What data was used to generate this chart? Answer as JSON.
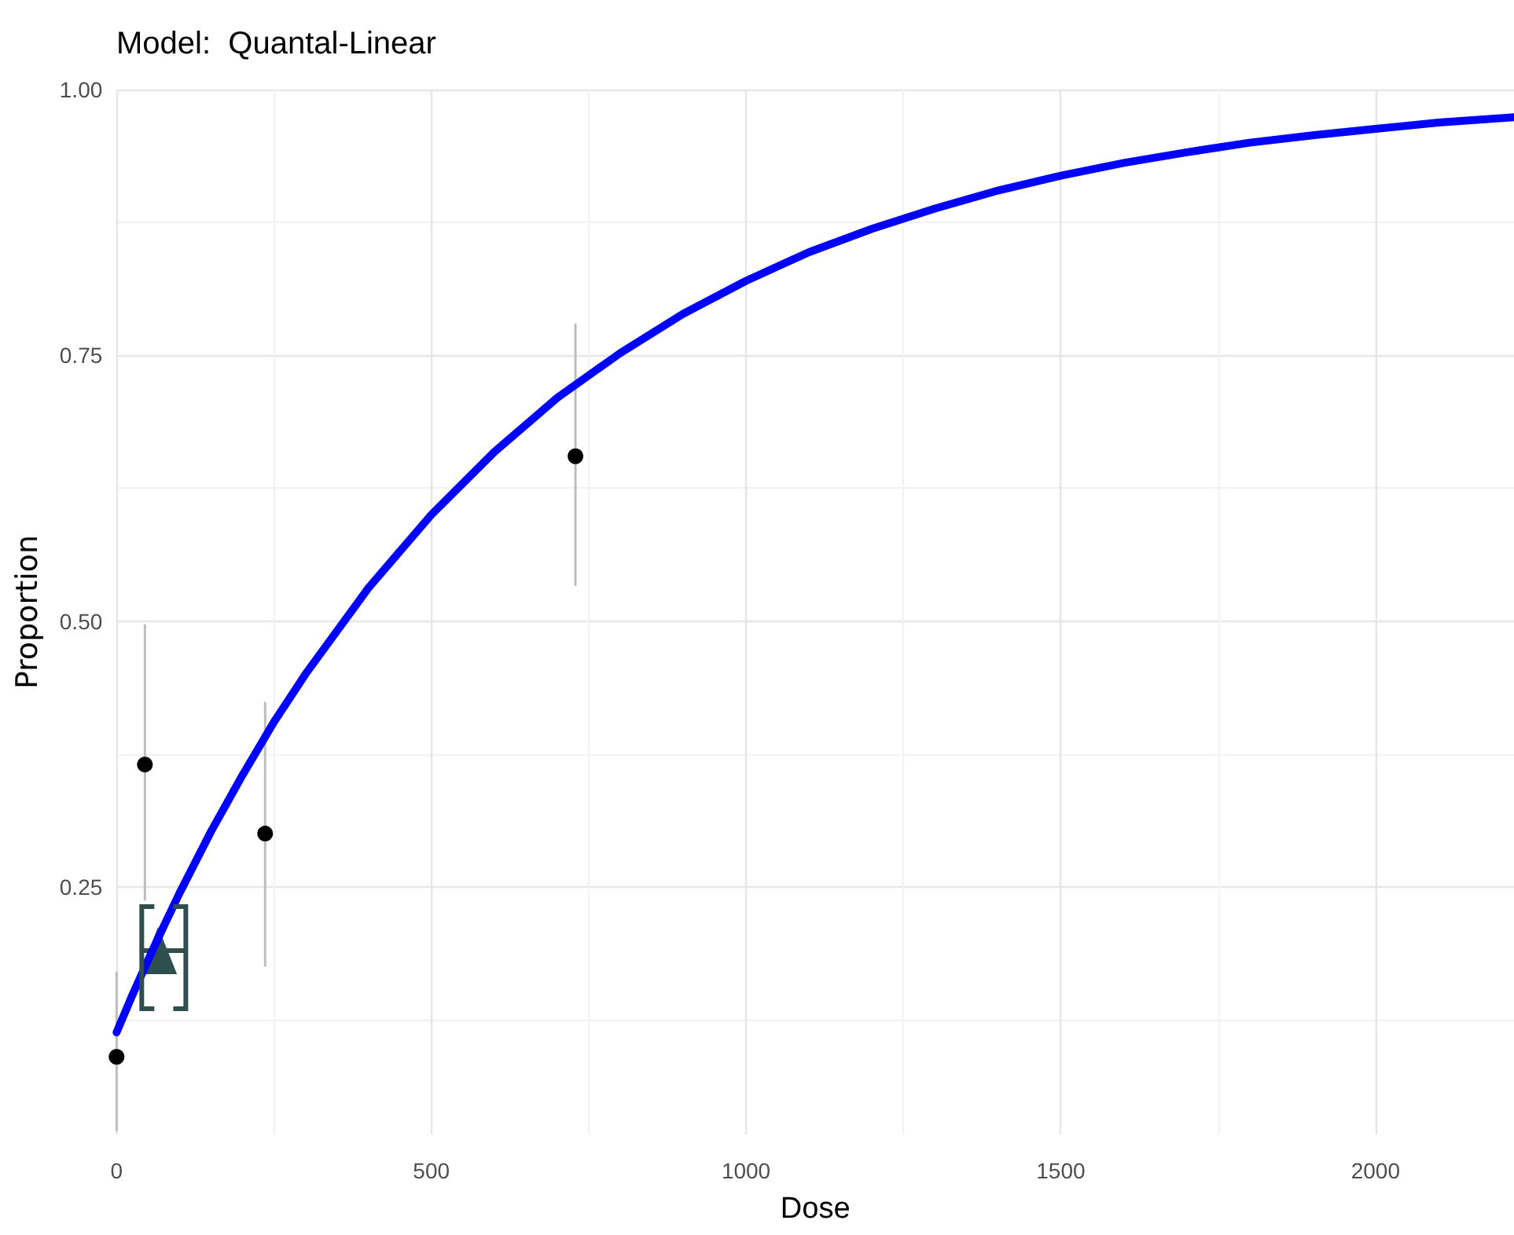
{
  "chart_data": {
    "type": "scatter",
    "title": "Model:  Quantal-Linear",
    "xlabel": "Dose",
    "ylabel": "Proportion",
    "xlim": [
      0,
      2220
    ],
    "ylim": [
      0.017,
      1
    ],
    "xticks": [
      0,
      {
        "value": 250,
        "label": null
      },
      500,
      {
        "value": 750,
        "label": null
      },
      1000,
      {
        "value": 1250,
        "label": null
      },
      1500,
      {
        "value": 1750,
        "label": null
      },
      2000
    ],
    "yticks": [
      {
        "value": 0.125,
        "label": null
      },
      0.25,
      {
        "value": 0.375,
        "label": null
      },
      {
        "value": 0.5,
        "label": "0.50"
      },
      {
        "value": 0.625,
        "label": null
      },
      0.75,
      {
        "value": 0.875,
        "label": null
      },
      {
        "value": 1,
        "label": "1.00"
      }
    ],
    "grid": true,
    "series": [
      {
        "color": "#000000",
        "marker": "circle",
        "x": [
          0,
          45,
          236,
          729
        ],
        "values": [
          0.09,
          0.365,
          0.3,
          0.655
        ],
        "errors": [
          [
            0.02,
            0.17
          ],
          [
            0.237,
            0.497
          ],
          [
            0.175,
            0.424
          ],
          [
            0.533,
            0.78
          ]
        ]
      },
      {
        "color": "#2f4f4f",
        "marker": "triangle",
        "x": [
          66
        ],
        "values": [
          0.19
        ],
        "xerrors": [
          [
            40,
            110
          ]
        ]
      },
      {
        "type": "line",
        "color": "#0000ff",
        "marker": "none",
        "line_style": "solid",
        "x": [
          0,
          25,
          50,
          75,
          100,
          150,
          200,
          250,
          300,
          400,
          500,
          600,
          700,
          800,
          900,
          1000,
          1100,
          1200,
          1300,
          1400,
          1500,
          1600,
          1700,
          1800,
          1900,
          2000,
          2100,
          2220
        ],
        "values": [
          0.113,
          0.148,
          0.181,
          0.213,
          0.244,
          0.302,
          0.355,
          0.405,
          0.45,
          0.531,
          0.6,
          0.659,
          0.71,
          0.752,
          0.789,
          0.82,
          0.847,
          0.869,
          0.888,
          0.905,
          0.919,
          0.931,
          0.941,
          0.95,
          0.957,
          0.963,
          0.969,
          0.974
        ]
      }
    ]
  }
}
